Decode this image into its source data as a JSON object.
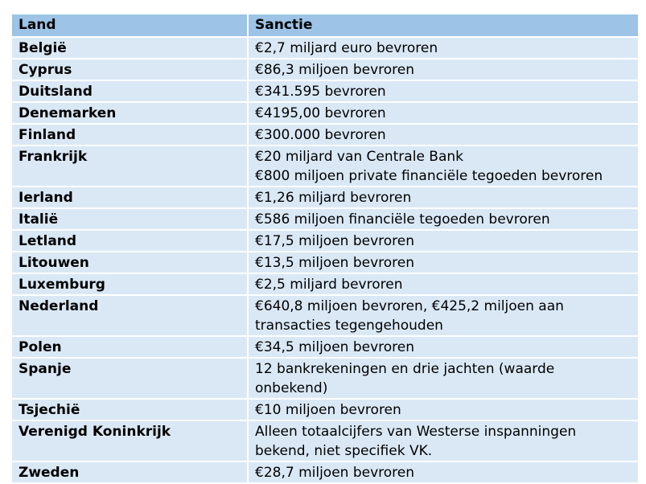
{
  "table": {
    "headers": [
      "Land",
      "Sanctie"
    ],
    "rows": [
      {
        "land": "België",
        "sanctie": "€2,7 miljard euro bevroren"
      },
      {
        "land": "Cyprus",
        "sanctie": "€86,3 miljoen bevroren"
      },
      {
        "land": "Duitsland",
        "sanctie": "€341.595 bevroren"
      },
      {
        "land": "Denemarken",
        "sanctie": "€4195,00 bevroren"
      },
      {
        "land": "Finland",
        "sanctie": "€300.000 bevroren"
      },
      {
        "land": "Frankrijk",
        "sanctie": "€20 miljard van Centrale Bank\n€800 miljoen private financiële tegoeden bevroren"
      },
      {
        "land": "Ierland",
        "sanctie": "€1,26 miljard bevroren"
      },
      {
        "land": "Italië",
        "sanctie": "€586 miljoen financiële tegoeden bevroren"
      },
      {
        "land": "Letland",
        "sanctie": "€17,5 miljoen bevroren"
      },
      {
        "land": "Litouwen",
        "sanctie": "€13,5 miljoen bevroren"
      },
      {
        "land": "Luxemburg",
        "sanctie": "€2,5 miljard bevroren"
      },
      {
        "land": "Nederland",
        "sanctie": "€640,8 miljoen bevroren, €425,2 miljoen aan\ntransacties tegengehouden"
      },
      {
        "land": "Polen",
        "sanctie": "€34,5 miljoen bevroren"
      },
      {
        "land": "Spanje",
        "sanctie": "12 bankrekeningen en drie jachten (waarde\nonbekend)"
      },
      {
        "land": "Tsjechië",
        "sanctie": "€10 miljoen bevroren"
      },
      {
        "land": "Verenigd Koninkrijk",
        "sanctie": "Alleen totaalcijfers van Westerse inspanningen\nbekend, niet specifiek VK."
      },
      {
        "land": "Zweden",
        "sanctie": "€28,7 miljoen bevroren"
      }
    ]
  },
  "colors": {
    "header_bg": "#9dc3e6",
    "row_bg": "#dae8f6",
    "border": "#ffffff"
  }
}
